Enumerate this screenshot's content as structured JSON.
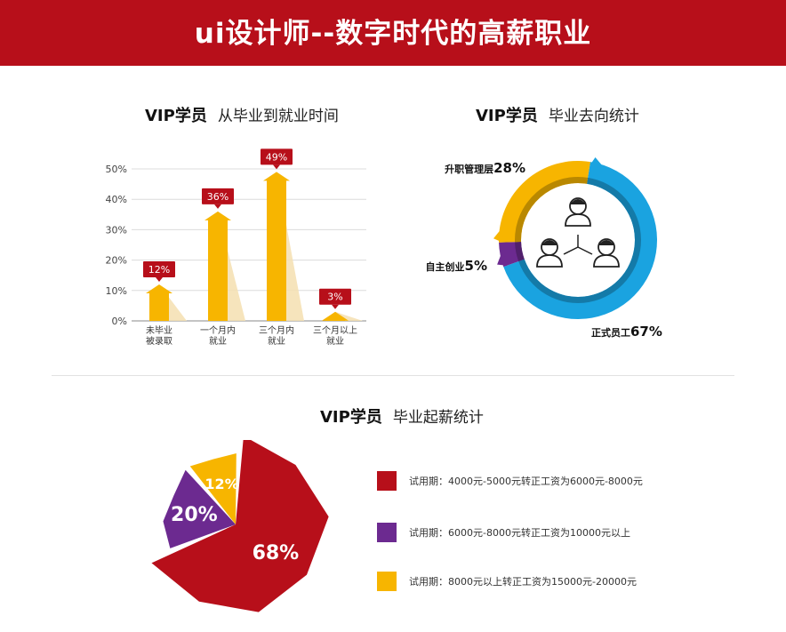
{
  "banner": {
    "title": "ui设计师--数字时代的高薪职业"
  },
  "sections": {
    "employment_time": {
      "title": "VIP学员",
      "subtitle": "从毕业到就业时间"
    },
    "destination": {
      "title": "VIP学员",
      "subtitle": "毕业去向统计"
    },
    "salary": {
      "title": "VIP学员",
      "subtitle": "毕业起薪统计"
    }
  },
  "colors": {
    "brand_red": "#b70f1a",
    "orange": "#f7b500",
    "purple": "#6c2a90",
    "blue": "#1aa3e0",
    "axis": "#555555"
  },
  "chart_data": [
    {
      "type": "bar",
      "title": "从毕业到就业时间",
      "categories": [
        "未毕业\n被录取",
        "一个月内\n就业",
        "三个月内\n就业",
        "三个月以上\n就业"
      ],
      "values": [
        12,
        36,
        49,
        3
      ],
      "value_labels": [
        "12%",
        "36%",
        "49%",
        "3%"
      ],
      "yticks": [
        "0%",
        "10%",
        "20%",
        "30%",
        "40%",
        "50%"
      ],
      "ylim": [
        0,
        50
      ],
      "grid": true
    },
    {
      "type": "pie",
      "title": "毕业去向统计",
      "style": "donut",
      "slices": [
        {
          "label": "正式员工",
          "value": 67,
          "display": "67%"
        },
        {
          "label": "自主创业",
          "value": 5,
          "display": "5%"
        },
        {
          "label": "升职管理层",
          "value": 28,
          "display": "28%"
        }
      ],
      "center_icon": "people-network-icon"
    },
    {
      "type": "pie",
      "title": "毕业起薪统计",
      "style": "polygon",
      "slices": [
        {
          "value": 68,
          "display": "68%",
          "legend": "试用期：4000元-5000元转正工资为6000元-8000元"
        },
        {
          "value": 20,
          "display": "20%",
          "legend": "试用期：6000元-8000元转正工资为10000元以上"
        },
        {
          "value": 12,
          "display": "12%",
          "legend": "试用期：8000元以上转正工资为15000元-20000元"
        }
      ]
    }
  ]
}
